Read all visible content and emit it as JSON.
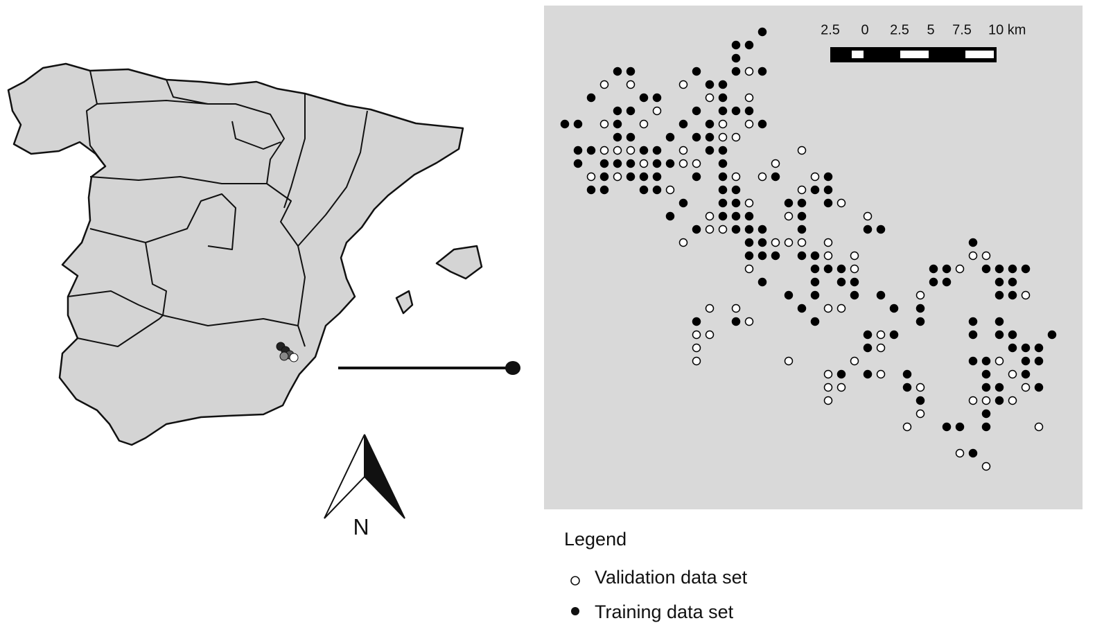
{
  "scale_bar": {
    "labels": [
      "2.5",
      "0",
      "2.5",
      "5",
      "7.5",
      "10 km"
    ]
  },
  "north_arrow": {
    "label": "N"
  },
  "legend": {
    "title": "Legend",
    "items": [
      "Validation data set",
      "Training data set"
    ]
  }
}
